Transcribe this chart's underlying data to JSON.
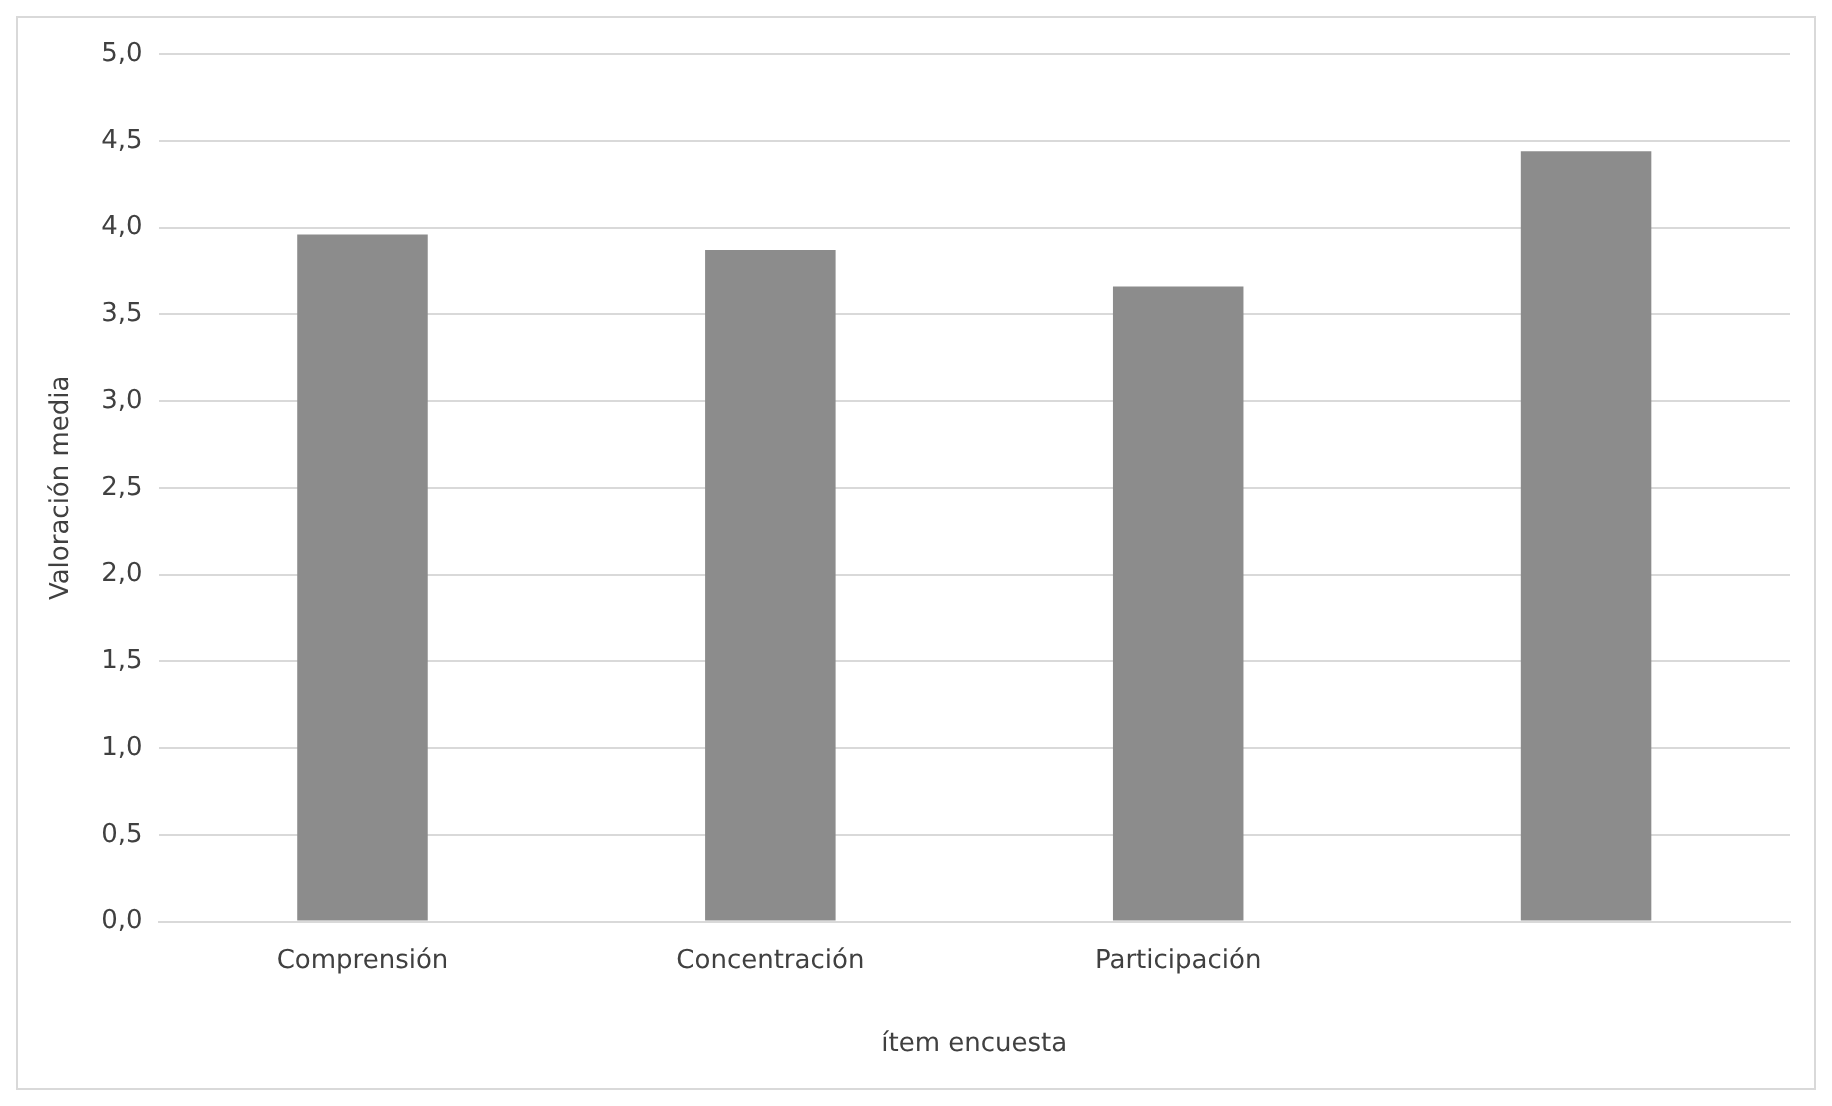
{
  "chart_data": {
    "type": "bar",
    "xlabel": "ítem encuesta",
    "ylabel": "Valoración media",
    "categories": [
      "Comprensión",
      "Concentración",
      "Participación",
      null
    ],
    "values": [
      3.96,
      3.87,
      3.66,
      4.44
    ],
    "color": "#8c8c8c",
    "ylim": [
      0,
      5
    ],
    "yticks": [
      {
        "value": 0,
        "label": "0,0"
      },
      {
        "value": 0.5,
        "label": "0,5"
      },
      {
        "value": 1,
        "label": "1,0"
      },
      {
        "value": 1.5,
        "label": "1,5"
      },
      {
        "value": 2,
        "label": "2,0"
      },
      {
        "value": 2.5,
        "label": "2,5"
      },
      {
        "value": 3,
        "label": "3,0"
      },
      {
        "value": 3.5,
        "label": "3,5"
      },
      {
        "value": 4,
        "label": "4,0"
      },
      {
        "value": 4.5,
        "label": "4,5"
      },
      {
        "value": 5,
        "label": "5,0"
      }
    ],
    "grid": "y"
  }
}
